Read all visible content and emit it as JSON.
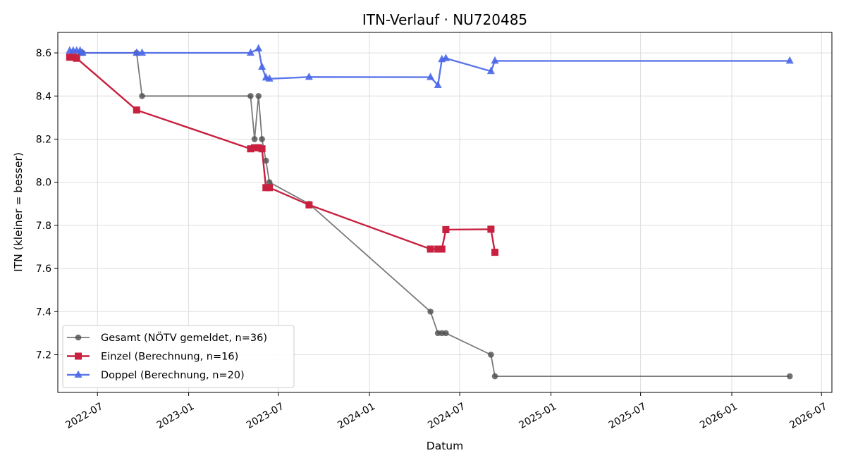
{
  "chart_data": {
    "type": "line",
    "title": "ITN-Verlauf · NU720485",
    "xlabel": "Datum",
    "ylabel": "ITN  (kleiner = besser)",
    "x_ticks": [
      "2022-07",
      "2023-01",
      "2023-07",
      "2024-01",
      "2024-07",
      "2025-01",
      "2025-07",
      "2026-01",
      "2026-07"
    ],
    "y_ticks": [
      "7.2",
      "7.4",
      "7.6",
      "7.8",
      "8.0",
      "8.2",
      "8.4",
      "8.6"
    ],
    "xlim": [
      "2022-04-12",
      "2026-07-22"
    ],
    "ylim": [
      7.025,
      8.695
    ],
    "grid": true,
    "legend_position": "lower-left",
    "series": [
      {
        "name": "Gesamt (NÖTV gemeldet, n=36)",
        "color": "#4d4d4d",
        "marker": "circle",
        "points": [
          [
            "2022-05-06",
            8.58
          ],
          [
            "2022-05-10",
            8.58
          ],
          [
            "2022-05-13",
            8.58
          ],
          [
            "2022-05-15",
            8.58
          ],
          [
            "2022-05-17",
            8.58
          ],
          [
            "2022-05-20",
            8.58
          ],
          [
            "2022-05-27",
            8.6
          ],
          [
            "2022-06-01",
            8.6
          ],
          [
            "2022-09-18",
            8.6
          ],
          [
            "2022-09-29",
            8.4
          ],
          [
            "2023-05-06",
            8.4
          ],
          [
            "2023-05-14",
            8.2
          ],
          [
            "2023-05-22",
            8.4
          ],
          [
            "2023-05-29",
            8.2
          ],
          [
            "2023-06-06",
            8.1
          ],
          [
            "2023-06-13",
            8.0
          ],
          [
            "2023-09-01",
            7.9
          ],
          [
            "2024-05-03",
            7.4
          ],
          [
            "2024-05-18",
            7.3
          ],
          [
            "2024-05-26",
            7.3
          ],
          [
            "2024-06-03",
            7.3
          ],
          [
            "2024-09-02",
            7.2
          ],
          [
            "2024-09-10",
            7.1
          ],
          [
            "2026-04-28",
            7.1
          ]
        ]
      },
      {
        "name": "Einzel (Berechnung, n=16)",
        "color": "#c8203e",
        "marker": "square",
        "points": [
          [
            "2022-05-06",
            8.58
          ],
          [
            "2022-05-13",
            8.58
          ],
          [
            "2022-05-20",
            8.575
          ],
          [
            "2022-09-18",
            8.335
          ],
          [
            "2023-05-06",
            8.155
          ],
          [
            "2023-05-14",
            8.16
          ],
          [
            "2023-05-22",
            8.16
          ],
          [
            "2023-05-29",
            8.155
          ],
          [
            "2023-06-06",
            7.975
          ],
          [
            "2023-06-13",
            7.975
          ],
          [
            "2023-09-01",
            7.895
          ],
          [
            "2024-05-03",
            7.69
          ],
          [
            "2024-05-18",
            7.69
          ],
          [
            "2024-05-26",
            7.69
          ],
          [
            "2024-06-03",
            7.78
          ],
          [
            "2024-09-02",
            7.782
          ],
          [
            "2024-09-10",
            7.675
          ]
        ]
      },
      {
        "name": "Doppel (Berechnung, n=20)",
        "color": "#4a67e8",
        "marker": "triangle",
        "points": [
          [
            "2022-05-06",
            8.61
          ],
          [
            "2022-05-13",
            8.61
          ],
          [
            "2022-05-20",
            8.61
          ],
          [
            "2022-05-27",
            8.61
          ],
          [
            "2022-06-01",
            8.6
          ],
          [
            "2022-09-18",
            8.6
          ],
          [
            "2022-09-29",
            8.6
          ],
          [
            "2023-05-06",
            8.6
          ],
          [
            "2023-05-22",
            8.62
          ],
          [
            "2023-05-29",
            8.535
          ],
          [
            "2023-06-06",
            8.485
          ],
          [
            "2023-06-13",
            8.48
          ],
          [
            "2023-09-01",
            8.488
          ],
          [
            "2024-05-03",
            8.487
          ],
          [
            "2024-05-18",
            8.45
          ],
          [
            "2024-05-26",
            8.57
          ],
          [
            "2024-06-03",
            8.575
          ],
          [
            "2024-09-02",
            8.515
          ],
          [
            "2024-09-10",
            8.563
          ],
          [
            "2026-04-28",
            8.563
          ]
        ]
      }
    ]
  }
}
